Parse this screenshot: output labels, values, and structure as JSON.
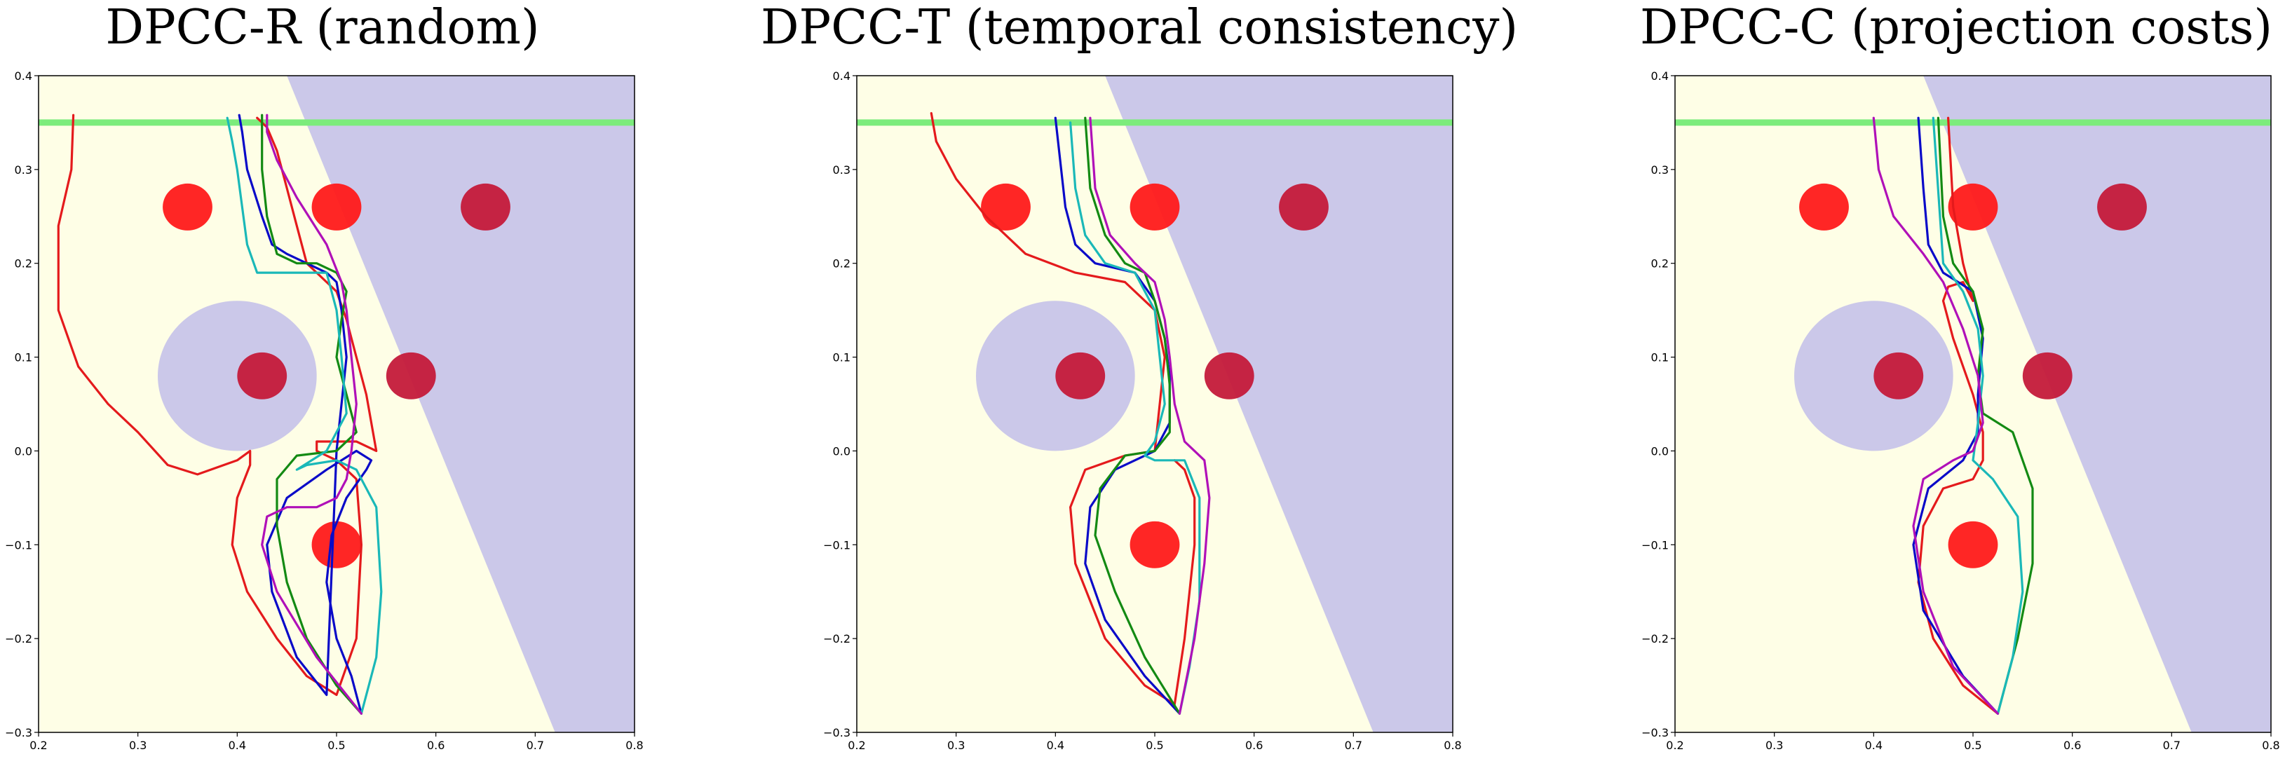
{
  "figure": {
    "colors": {
      "feasible": "#fefee6",
      "infeasible": "#cbc8e9",
      "goal_line": "#7cec7c",
      "obstacle": "#ff1a1a",
      "obstacle_overlap": "#c41a3a"
    }
  },
  "chart_data": [
    {
      "type": "line",
      "title": "DPCC-R (random)",
      "xlim": [
        0.2,
        0.8
      ],
      "ylim": [
        -0.3,
        0.4
      ],
      "xticks": [
        "0.2",
        "0.3",
        "0.4",
        "0.5",
        "0.6",
        "0.7",
        "0.8"
      ],
      "yticks": [
        "0.4",
        "0.3",
        "0.2",
        "0.1",
        "0.0",
        "−0.1",
        "−0.2",
        "−0.3"
      ],
      "goal_y": 0.35,
      "halfplane": {
        "top_x": 0.45,
        "bottom_x": 0.72
      },
      "big_obstacle": {
        "x": 0.4,
        "y": 0.08,
        "r": 0.08
      },
      "obstacles": [
        {
          "x": 0.35,
          "y": 0.26
        },
        {
          "x": 0.5,
          "y": 0.26
        },
        {
          "x": 0.65,
          "y": 0.26
        },
        {
          "x": 0.425,
          "y": 0.08
        },
        {
          "x": 0.575,
          "y": 0.08
        },
        {
          "x": 0.5,
          "y": -0.1
        }
      ],
      "series": [
        {
          "name": "red",
          "color": "#e41a1c",
          "x": [
            0.235,
            0.233,
            0.22,
            0.22,
            0.24,
            0.27,
            0.3,
            0.33,
            0.36,
            0.4,
            0.413,
            0.413,
            0.4,
            0.395,
            0.41,
            0.44,
            0.47,
            0.5,
            0.52,
            0.525,
            0.52,
            0.5,
            0.48,
            0.48,
            0.5,
            0.52,
            0.54,
            0.53,
            0.52,
            0.51,
            0.5,
            0.49,
            0.48,
            0.47,
            0.46,
            0.45,
            0.44,
            0.43,
            0.42
          ],
          "y": [
            0.358,
            0.3,
            0.24,
            0.15,
            0.09,
            0.05,
            0.02,
            -0.015,
            -0.025,
            -0.01,
            0.0,
            -0.015,
            -0.05,
            -0.1,
            -0.15,
            -0.2,
            -0.24,
            -0.26,
            -0.2,
            -0.1,
            -0.03,
            -0.01,
            0.0,
            0.01,
            0.01,
            0.01,
            0.0,
            0.06,
            0.1,
            0.14,
            0.17,
            0.18,
            0.19,
            0.2,
            0.24,
            0.28,
            0.32,
            0.345,
            0.355
          ]
        },
        {
          "name": "blue",
          "color": "#0a0ac8",
          "x": [
            0.525,
            0.515,
            0.5,
            0.49,
            0.495,
            0.51,
            0.53,
            0.535,
            0.52,
            0.49,
            0.45,
            0.43,
            0.435,
            0.46,
            0.49,
            0.5,
            0.505,
            0.51,
            0.505,
            0.5,
            0.49,
            0.47,
            0.45,
            0.435,
            0.425,
            0.41,
            0.405,
            0.402
          ],
          "y": [
            -0.28,
            -0.24,
            -0.2,
            -0.14,
            -0.09,
            -0.05,
            -0.02,
            -0.01,
            0.0,
            -0.02,
            -0.05,
            -0.1,
            -0.15,
            -0.22,
            -0.26,
            0.0,
            0.05,
            0.1,
            0.15,
            0.18,
            0.19,
            0.2,
            0.21,
            0.22,
            0.25,
            0.3,
            0.34,
            0.358
          ]
        },
        {
          "name": "green",
          "color": "#138a13",
          "x": [
            0.525,
            0.5,
            0.47,
            0.45,
            0.44,
            0.44,
            0.46,
            0.5,
            0.52,
            0.51,
            0.5,
            0.505,
            0.51,
            0.5,
            0.48,
            0.46,
            0.44,
            0.43,
            0.425,
            0.425,
            0.425
          ],
          "y": [
            -0.28,
            -0.25,
            -0.2,
            -0.14,
            -0.08,
            -0.03,
            -0.005,
            0.0,
            0.02,
            0.06,
            0.1,
            0.14,
            0.17,
            0.19,
            0.2,
            0.2,
            0.21,
            0.25,
            0.3,
            0.34,
            0.358
          ]
        },
        {
          "name": "cyan",
          "color": "#1ab8b8",
          "x": [
            0.525,
            0.54,
            0.545,
            0.54,
            0.52,
            0.5,
            0.47,
            0.46,
            0.49,
            0.51,
            0.505,
            0.5,
            0.49,
            0.45,
            0.42,
            0.41,
            0.405,
            0.4,
            0.395,
            0.39
          ],
          "y": [
            -0.28,
            -0.22,
            -0.15,
            -0.06,
            -0.02,
            -0.01,
            -0.015,
            -0.02,
            0.0,
            0.04,
            0.1,
            0.15,
            0.19,
            0.19,
            0.19,
            0.22,
            0.26,
            0.3,
            0.33,
            0.355
          ]
        },
        {
          "name": "magenta",
          "color": "#b010b8",
          "x": [
            0.525,
            0.48,
            0.44,
            0.425,
            0.43,
            0.45,
            0.48,
            0.5,
            0.51,
            0.515,
            0.52,
            0.515,
            0.51,
            0.505,
            0.49,
            0.46,
            0.44,
            0.43,
            0.43
          ],
          "y": [
            -0.28,
            -0.22,
            -0.15,
            -0.1,
            -0.07,
            -0.06,
            -0.06,
            -0.05,
            -0.03,
            0.0,
            0.05,
            0.1,
            0.15,
            0.18,
            0.22,
            0.27,
            0.31,
            0.34,
            0.358
          ]
        }
      ]
    },
    {
      "type": "line",
      "title": "DPCC-T (temporal consistency)",
      "xlim": [
        0.2,
        0.8
      ],
      "ylim": [
        -0.3,
        0.4
      ],
      "xticks": [
        "0.2",
        "0.3",
        "0.4",
        "0.5",
        "0.6",
        "0.7",
        "0.8"
      ],
      "yticks": [
        "0.4",
        "0.3",
        "0.2",
        "0.1",
        "0.0",
        "−0.1",
        "−0.2",
        "−0.3"
      ],
      "goal_y": 0.35,
      "halfplane": {
        "top_x": 0.45,
        "bottom_x": 0.72
      },
      "big_obstacle": {
        "x": 0.4,
        "y": 0.08,
        "r": 0.08
      },
      "obstacles": [
        {
          "x": 0.35,
          "y": 0.26
        },
        {
          "x": 0.5,
          "y": 0.26
        },
        {
          "x": 0.65,
          "y": 0.26
        },
        {
          "x": 0.425,
          "y": 0.08
        },
        {
          "x": 0.575,
          "y": 0.08
        },
        {
          "x": 0.5,
          "y": -0.1
        }
      ],
      "series": [
        {
          "name": "red",
          "color": "#e41a1c",
          "x": [
            0.275,
            0.28,
            0.3,
            0.33,
            0.37,
            0.42,
            0.47,
            0.5,
            0.51,
            0.505,
            0.5,
            0.47,
            0.43,
            0.415,
            0.42,
            0.45,
            0.49,
            0.52,
            0.53,
            0.54,
            0.54,
            0.53,
            0.52
          ],
          "y": [
            0.36,
            0.33,
            0.29,
            0.25,
            0.21,
            0.19,
            0.18,
            0.15,
            0.1,
            0.05,
            0.0,
            -0.005,
            -0.02,
            -0.06,
            -0.12,
            -0.2,
            -0.25,
            -0.27,
            -0.2,
            -0.1,
            -0.05,
            -0.02,
            -0.01
          ]
        },
        {
          "name": "blue",
          "color": "#0a0ac8",
          "x": [
            0.525,
            0.49,
            0.45,
            0.43,
            0.435,
            0.46,
            0.5,
            0.515,
            0.515,
            0.51,
            0.5,
            0.48,
            0.44,
            0.42,
            0.41,
            0.4
          ],
          "y": [
            -0.28,
            -0.24,
            -0.18,
            -0.12,
            -0.06,
            -0.02,
            0.0,
            0.03,
            0.08,
            0.12,
            0.16,
            0.19,
            0.2,
            0.22,
            0.26,
            0.355
          ]
        },
        {
          "name": "green",
          "color": "#138a13",
          "x": [
            0.525,
            0.49,
            0.46,
            0.44,
            0.445,
            0.47,
            0.5,
            0.515,
            0.515,
            0.51,
            0.5,
            0.49,
            0.47,
            0.45,
            0.435,
            0.43
          ],
          "y": [
            -0.28,
            -0.22,
            -0.15,
            -0.09,
            -0.04,
            -0.005,
            0.0,
            0.02,
            0.07,
            0.12,
            0.16,
            0.19,
            0.2,
            0.23,
            0.28,
            0.355
          ]
        },
        {
          "name": "cyan",
          "color": "#1ab8b8",
          "x": [
            0.525,
            0.535,
            0.545,
            0.545,
            0.53,
            0.5,
            0.49,
            0.5,
            0.51,
            0.505,
            0.5,
            0.48,
            0.45,
            0.43,
            0.42,
            0.415
          ],
          "y": [
            -0.28,
            -0.23,
            -0.16,
            -0.05,
            -0.01,
            -0.01,
            -0.005,
            0.01,
            0.05,
            0.1,
            0.15,
            0.19,
            0.2,
            0.23,
            0.28,
            0.35
          ]
        },
        {
          "name": "magenta",
          "color": "#b010b8",
          "x": [
            0.525,
            0.54,
            0.55,
            0.555,
            0.55,
            0.53,
            0.52,
            0.515,
            0.51,
            0.5,
            0.48,
            0.455,
            0.44,
            0.435
          ],
          "y": [
            -0.28,
            -0.2,
            -0.12,
            -0.05,
            -0.01,
            0.01,
            0.05,
            0.1,
            0.14,
            0.18,
            0.2,
            0.23,
            0.28,
            0.355
          ]
        }
      ]
    },
    {
      "type": "line",
      "title": "DPCC-C (projection costs)",
      "xlim": [
        0.2,
        0.8
      ],
      "ylim": [
        -0.3,
        0.4
      ],
      "xticks": [
        "0.2",
        "0.3",
        "0.4",
        "0.5",
        "0.6",
        "0.7",
        "0.8"
      ],
      "yticks": [
        "0.4",
        "0.3",
        "0.2",
        "0.1",
        "0.0",
        "−0.1",
        "−0.2",
        "−0.3"
      ],
      "goal_y": 0.35,
      "halfplane": {
        "top_x": 0.45,
        "bottom_x": 0.72
      },
      "big_obstacle": {
        "x": 0.4,
        "y": 0.08,
        "r": 0.08
      },
      "obstacles": [
        {
          "x": 0.35,
          "y": 0.26
        },
        {
          "x": 0.5,
          "y": 0.26
        },
        {
          "x": 0.65,
          "y": 0.26
        },
        {
          "x": 0.425,
          "y": 0.08
        },
        {
          "x": 0.575,
          "y": 0.08
        },
        {
          "x": 0.5,
          "y": -0.1
        }
      ],
      "series": [
        {
          "name": "red",
          "color": "#e41a1c",
          "x": [
            0.525,
            0.49,
            0.46,
            0.445,
            0.45,
            0.47,
            0.5,
            0.51,
            0.51,
            0.5,
            0.48,
            0.47,
            0.475,
            0.49,
            0.5,
            0.49,
            0.48,
            0.475
          ],
          "y": [
            -0.28,
            -0.25,
            -0.2,
            -0.14,
            -0.08,
            -0.04,
            -0.03,
            -0.01,
            0.02,
            0.06,
            0.12,
            0.16,
            0.175,
            0.18,
            0.16,
            0.2,
            0.26,
            0.355
          ]
        },
        {
          "name": "blue",
          "color": "#0a0ac8",
          "x": [
            0.525,
            0.49,
            0.45,
            0.44,
            0.455,
            0.49,
            0.505,
            0.505,
            0.51,
            0.5,
            0.47,
            0.455,
            0.45,
            0.445
          ],
          "y": [
            -0.28,
            -0.24,
            -0.17,
            -0.1,
            -0.04,
            -0.01,
            0.02,
            0.06,
            0.12,
            0.17,
            0.19,
            0.22,
            0.28,
            0.355
          ]
        },
        {
          "name": "green",
          "color": "#138a13",
          "x": [
            0.525,
            0.545,
            0.56,
            0.56,
            0.54,
            0.51,
            0.505,
            0.51,
            0.5,
            0.48,
            0.47,
            0.465
          ],
          "y": [
            -0.28,
            -0.2,
            -0.12,
            -0.04,
            0.02,
            0.04,
            0.08,
            0.13,
            0.17,
            0.2,
            0.25,
            0.355
          ]
        },
        {
          "name": "cyan",
          "color": "#1ab8b8",
          "x": [
            0.525,
            0.54,
            0.55,
            0.545,
            0.52,
            0.5,
            0.505,
            0.51,
            0.505,
            0.49,
            0.47,
            0.46
          ],
          "y": [
            -0.28,
            -0.22,
            -0.15,
            -0.07,
            -0.03,
            -0.01,
            0.03,
            0.08,
            0.13,
            0.17,
            0.2,
            0.355
          ]
        },
        {
          "name": "magenta",
          "color": "#b010b8",
          "x": [
            0.525,
            0.48,
            0.45,
            0.44,
            0.45,
            0.48,
            0.5,
            0.51,
            0.505,
            0.49,
            0.47,
            0.45,
            0.42,
            0.405,
            0.4
          ],
          "y": [
            -0.28,
            -0.23,
            -0.15,
            -0.08,
            -0.03,
            -0.01,
            0.0,
            0.03,
            0.08,
            0.13,
            0.18,
            0.21,
            0.25,
            0.3,
            0.355
          ]
        }
      ]
    }
  ]
}
